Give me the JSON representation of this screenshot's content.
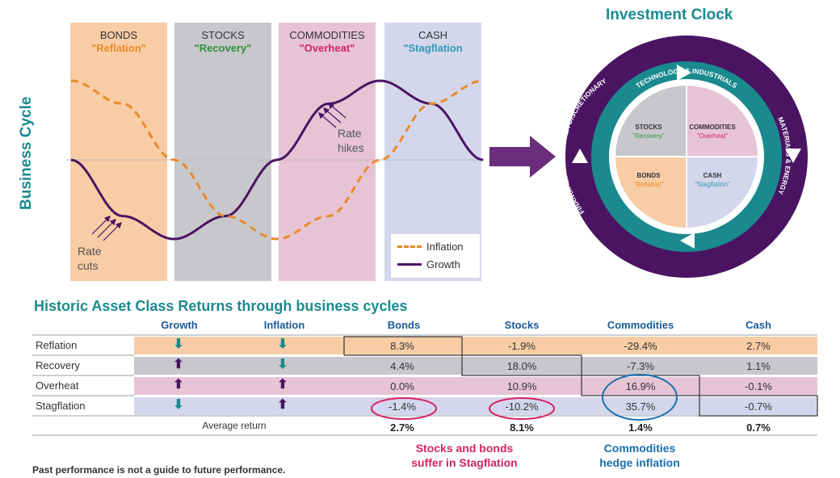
{
  "cycle": {
    "axis_label": "Business Cycle",
    "phases": [
      {
        "title": "BONDS",
        "subtitle": "\"Reflation\"",
        "color": "#f8cca5",
        "sub_color": "#e88a2b"
      },
      {
        "title": "STOCKS",
        "subtitle": "\"Recovery\"",
        "color": "#c8c8cc",
        "sub_color": "#2f8f3a"
      },
      {
        "title": "COMMODITIES",
        "subtitle": "\"Overheat\"",
        "color": "#e6c4d4",
        "sub_color": "#d42463"
      },
      {
        "title": "CASH",
        "subtitle": "\"Stagflation",
        "color": "#d4d6ec",
        "sub_color": "#2e9ab5"
      }
    ],
    "annotations": {
      "rate_cuts": [
        "Rate",
        "cuts"
      ],
      "rate_hikes": [
        "Rate",
        "hikes"
      ]
    },
    "legend": {
      "inflation": "Inflation",
      "growth": "Growth"
    },
    "colors": {
      "inflation": "#e88a2b",
      "growth": "#4a1462"
    }
  },
  "chart_data": {
    "type": "line",
    "title": "",
    "xlabel": "",
    "ylabel": "Business Cycle",
    "x": [
      0,
      0.125,
      0.25,
      0.375,
      0.5,
      0.625,
      0.75,
      0.875,
      1
    ],
    "series": [
      {
        "name": "Growth",
        "values": [
          0,
          -0.71,
          -1,
          -0.71,
          0,
          0.71,
          1,
          0.71,
          0
        ],
        "style": "solid",
        "color": "#4a1462"
      },
      {
        "name": "Inflation",
        "values": [
          1,
          0.71,
          0,
          -0.71,
          -1,
          -0.71,
          0,
          0.71,
          1
        ],
        "style": "dashed",
        "color": "#e88a2b"
      }
    ],
    "grid": false,
    "legend_position": "bottom-right"
  },
  "clock": {
    "title": "Investment Clock",
    "ring_labels": {
      "top": "TECHNOLOGY & INDUSTRIALS",
      "right": "MATERIALS & ENERGY",
      "bottom": "TELECOM, STAPLES, HEALTHCARE & UTILITIES",
      "left": "FINANCIALS & CONSUMER DISCRETIONARY"
    },
    "quadrants": [
      {
        "title": "STOCKS",
        "subtitle": "\"Recovery\"",
        "color": "#c8c8cc",
        "sub_color": "#2f8f3a"
      },
      {
        "title": "COMMODITIES",
        "subtitle": "\"Overheat\"",
        "color": "#e6c4d4",
        "sub_color": "#d42463"
      },
      {
        "title": "BONDS",
        "subtitle": "\"Reflation\"",
        "color": "#f8cca5",
        "sub_color": "#e88a2b"
      },
      {
        "title": "CASH",
        "subtitle": "\"Stagflation\"",
        "color": "#d4d6ec",
        "sub_color": "#2e9ab5"
      }
    ],
    "colors": {
      "outer": "#4a1462",
      "inner": "#1a8a8e"
    }
  },
  "table": {
    "title": "Historic Asset Class Returns through business cycles",
    "columns": [
      "Growth",
      "Inflation",
      "Bonds",
      "Stocks",
      "Commodities",
      "Cash"
    ],
    "rows": [
      {
        "label": "Reflation",
        "growth": "down",
        "inflation": "down",
        "bonds": "8.3%",
        "stocks": "-1.9%",
        "commodities": "-29.4%",
        "cash": "2.7%",
        "color": "#f8cca5"
      },
      {
        "label": "Recovery",
        "growth": "up",
        "inflation": "down",
        "bonds": "4.4%",
        "stocks": "18.0%",
        "commodities": "-7.3%",
        "cash": "1.1%",
        "color": "#c8c8cc"
      },
      {
        "label": "Overheat",
        "growth": "up",
        "inflation": "up",
        "bonds": "0.0%",
        "stocks": "10.9%",
        "commodities": "16.9%",
        "cash": "-0.1%",
        "color": "#e6c4d4"
      },
      {
        "label": "Stagflation",
        "growth": "down",
        "inflation": "up",
        "bonds": "-1.4%",
        "stocks": "-10.2%",
        "commodities": "35.7%",
        "cash": "-0.7%",
        "color": "#d4d6ec"
      }
    ],
    "average": {
      "label": "Average return",
      "bonds": "2.7%",
      "stocks": "8.1%",
      "commodities": "1.4%",
      "cash": "0.7%"
    },
    "arrow_colors": {
      "down": "#1a8a8e",
      "up": "#4a1462"
    }
  },
  "notes": {
    "red": [
      "Stocks and bonds",
      "suffer in Stagflation"
    ],
    "blue": [
      "Commodities",
      "hedge inflation"
    ],
    "disclaimer": "Past performance is not a guide to future performance."
  }
}
